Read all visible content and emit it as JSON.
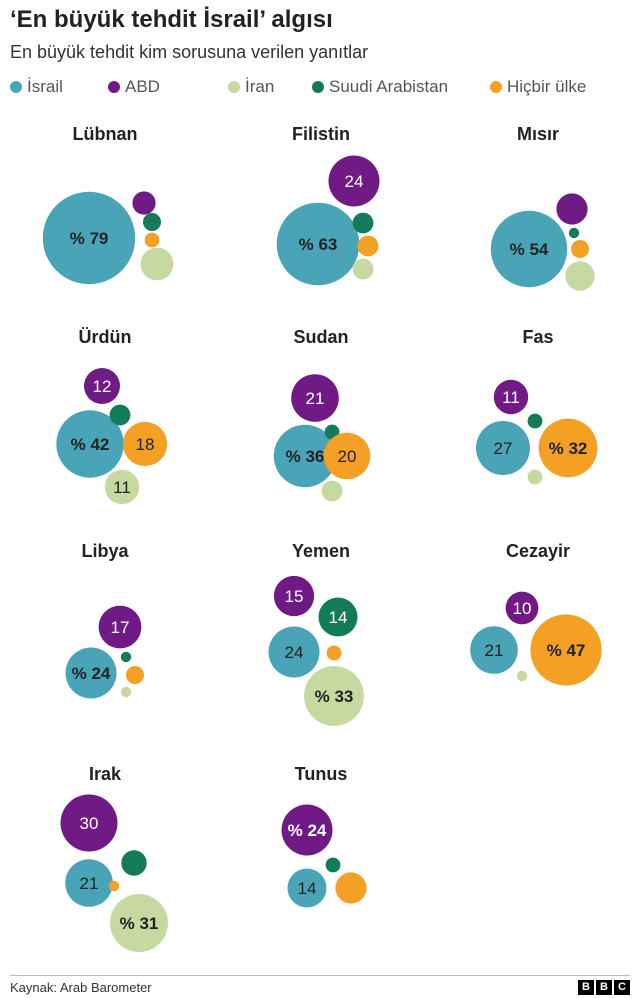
{
  "header": {
    "title": "‘En büyük tehdit İsrail’ algısı",
    "subtitle": "En büyük tehdit kim sorusuna verilen yanıtlar"
  },
  "legend": [
    {
      "key": "israil",
      "label": "İsrail",
      "color": "#4aa4b8"
    },
    {
      "key": "abd",
      "label": "ABD",
      "color": "#6f1a85"
    },
    {
      "key": "iran",
      "label": "İran",
      "color": "#c5d9a0"
    },
    {
      "key": "suudi",
      "label": "Suudi Arabistan",
      "color": "#137a5a"
    },
    {
      "key": "hicbir",
      "label": "Hiçbir ülke",
      "color": "#f4a025"
    }
  ],
  "chart_data": {
    "type": "bubble",
    "title": "‘En büyük tehdit İsrail’ algısı",
    "subtitle": "En büyük tehdit kim sorusuna verilen yanıtlar",
    "categories": [
      "İsrail",
      "ABD",
      "İran",
      "Suudi Arabistan",
      "Hiçbir ülke"
    ],
    "legend_position": "top",
    "panels": [
      {
        "country": "Lübnan",
        "labels": [
          "% 79",
          "",
          "",
          "",
          ""
        ],
        "values": [
          79,
          5,
          10,
          3,
          2
        ]
      },
      {
        "country": "Filistin",
        "labels": [
          "% 63",
          "24",
          "",
          "",
          ""
        ],
        "values": [
          63,
          24,
          4,
          4,
          4
        ]
      },
      {
        "country": "Mısır",
        "labels": [
          "% 54",
          "",
          "",
          "",
          ""
        ],
        "values": [
          54,
          9,
          8,
          1,
          3
        ]
      },
      {
        "country": "Ürdün",
        "labels": [
          "% 42",
          "12",
          "11",
          "",
          "18"
        ],
        "values": [
          42,
          12,
          11,
          4,
          18
        ]
      },
      {
        "country": "Sudan",
        "labels": [
          "% 36",
          "21",
          "",
          "",
          "20"
        ],
        "values": [
          36,
          21,
          4,
          2,
          20
        ]
      },
      {
        "country": "Fas",
        "labels": [
          "27",
          "11",
          "",
          "",
          "% 32"
        ],
        "values": [
          27,
          11,
          2,
          2,
          32
        ]
      },
      {
        "country": "Libya",
        "labels": [
          "% 24",
          "17",
          "",
          "",
          ""
        ],
        "values": [
          24,
          17,
          1,
          1,
          3
        ]
      },
      {
        "country": "Yemen",
        "labels": [
          "24",
          "15",
          "% 33",
          "14",
          ""
        ],
        "values": [
          24,
          15,
          33,
          14,
          2
        ]
      },
      {
        "country": "Cezayir",
        "labels": [
          "21",
          "10",
          "",
          "",
          "% 47"
        ],
        "values": [
          21,
          10,
          1,
          0,
          47
        ]
      },
      {
        "country": "Irak",
        "labels": [
          "21",
          "30",
          "% 31",
          "",
          ""
        ],
        "values": [
          21,
          30,
          31,
          6,
          1
        ]
      },
      {
        "country": "Tunus",
        "labels": [
          "14",
          "% 24",
          "",
          "",
          ""
        ],
        "values": [
          14,
          24,
          0,
          2,
          9
        ]
      }
    ]
  },
  "footer": {
    "source": "Kaynak: Arab Barometer",
    "logo_letters": [
      "B",
      "B",
      "C"
    ]
  }
}
